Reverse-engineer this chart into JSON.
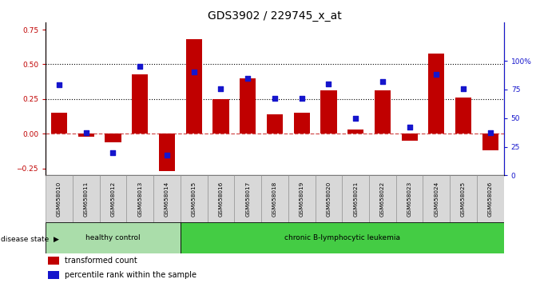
{
  "title": "GDS3902 / 229745_x_at",
  "samples": [
    "GSM658010",
    "GSM658011",
    "GSM658012",
    "GSM658013",
    "GSM658014",
    "GSM658015",
    "GSM658016",
    "GSM658017",
    "GSM658018",
    "GSM658019",
    "GSM658020",
    "GSM658021",
    "GSM658022",
    "GSM658023",
    "GSM658024",
    "GSM658025",
    "GSM658026"
  ],
  "bar_values": [
    0.15,
    -0.02,
    -0.06,
    0.43,
    -0.27,
    0.68,
    0.25,
    0.4,
    0.14,
    0.15,
    0.31,
    0.03,
    0.31,
    -0.05,
    0.58,
    0.26,
    -0.12
  ],
  "percentile_values": [
    79,
    37,
    20,
    95,
    18,
    90,
    76,
    85,
    67,
    67,
    80,
    50,
    82,
    42,
    88,
    76,
    37
  ],
  "healthy_count": 5,
  "bar_color": "#c00000",
  "percentile_color": "#1515cc",
  "left_ylim": [
    -0.3,
    0.8
  ],
  "right_ylim": [
    0,
    133.33
  ],
  "left_yticks": [
    -0.25,
    0.0,
    0.25,
    0.5,
    0.75
  ],
  "right_yticks": [
    0,
    25,
    50,
    75,
    100
  ],
  "right_yticklabels": [
    "0",
    "25",
    "50",
    "75",
    "100%"
  ],
  "hline_y": [
    0.25,
    0.5
  ],
  "healthy_bg": "#aaddaa",
  "leukemia_bg": "#44cc44",
  "legend_items": [
    "transformed count",
    "percentile rank within the sample"
  ],
  "title_fontsize": 10,
  "tick_fontsize": 6.5,
  "label_fontsize": 6
}
